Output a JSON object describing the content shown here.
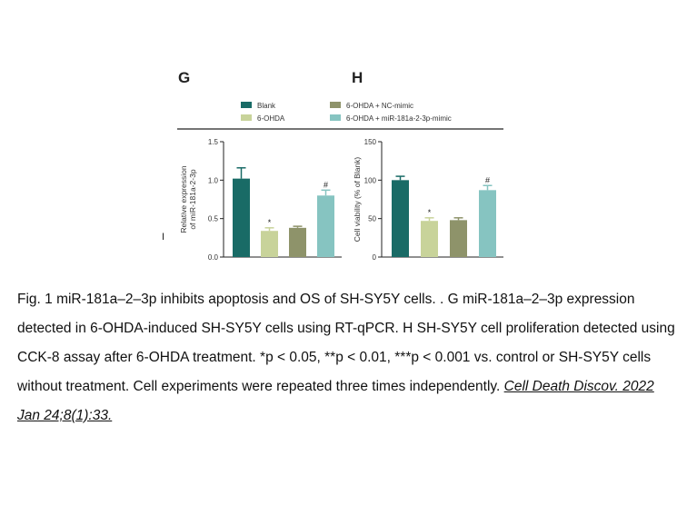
{
  "panel_labels": [
    "G",
    "H"
  ],
  "legend": [
    {
      "label": "Blank",
      "color": "#196b66"
    },
    {
      "label": "6-OHDA",
      "color": "#c8d39a"
    },
    {
      "label": "6-OHDA + NC-mimic",
      "color": "#8e936a"
    },
    {
      "label": "6-OHDA + miR-181a-2-3p-mimic",
      "color": "#86c4c1"
    }
  ],
  "chart_data": [
    {
      "type": "bar",
      "panel": "G",
      "categories": [
        "Blank",
        "6-OHDA",
        "6-OHDA + NC-mimic",
        "6-OHDA + miR-181a-2-3p-mimic"
      ],
      "values": [
        1.02,
        0.34,
        0.38,
        0.8
      ],
      "errors": [
        0.14,
        0.04,
        0.02,
        0.07
      ],
      "annotations": [
        "",
        "*",
        "",
        "#"
      ],
      "ylabel": [
        "Relative expression",
        "of miR-181a-2-3p"
      ],
      "ylim": [
        0,
        1.5
      ],
      "yticks": [
        "0.0",
        "0.5",
        "1.0",
        "1.5"
      ],
      "grid": false
    },
    {
      "type": "bar",
      "panel": "H",
      "categories": [
        "Blank",
        "6-OHDA",
        "6-OHDA + NC-mimic",
        "6-OHDA + miR-181a-2-3p-mimic"
      ],
      "values": [
        100,
        47,
        48,
        87
      ],
      "errors": [
        5,
        4,
        3,
        6
      ],
      "annotations": [
        "",
        "*",
        "",
        "#"
      ],
      "ylabel": [
        "Cell viability (% of Blank)"
      ],
      "ylim": [
        0,
        150
      ],
      "yticks": [
        "0",
        "50",
        "100",
        "150"
      ],
      "grid": false
    }
  ],
  "caption": {
    "text": "Fig. 1 miR-181a–2–3p inhibits apoptosis and OS of SH-SY5Y cells. . G miR-181a–2–3p expression detected in 6-OHDA-induced SH-SY5Y cells using RT-qPCR. H SH-SY5Y cell proliferation detected using CCK-8 assay after 6-OHDA treatment. *p < 0.05, **p < 0.01, ***p < 0.001 vs. control or SH-SY5Y cells without treatment. Cell experiments were repeated three times independently.",
    "citation": "Cell Death Discov. 2022 Jan 24;8(1):33."
  }
}
